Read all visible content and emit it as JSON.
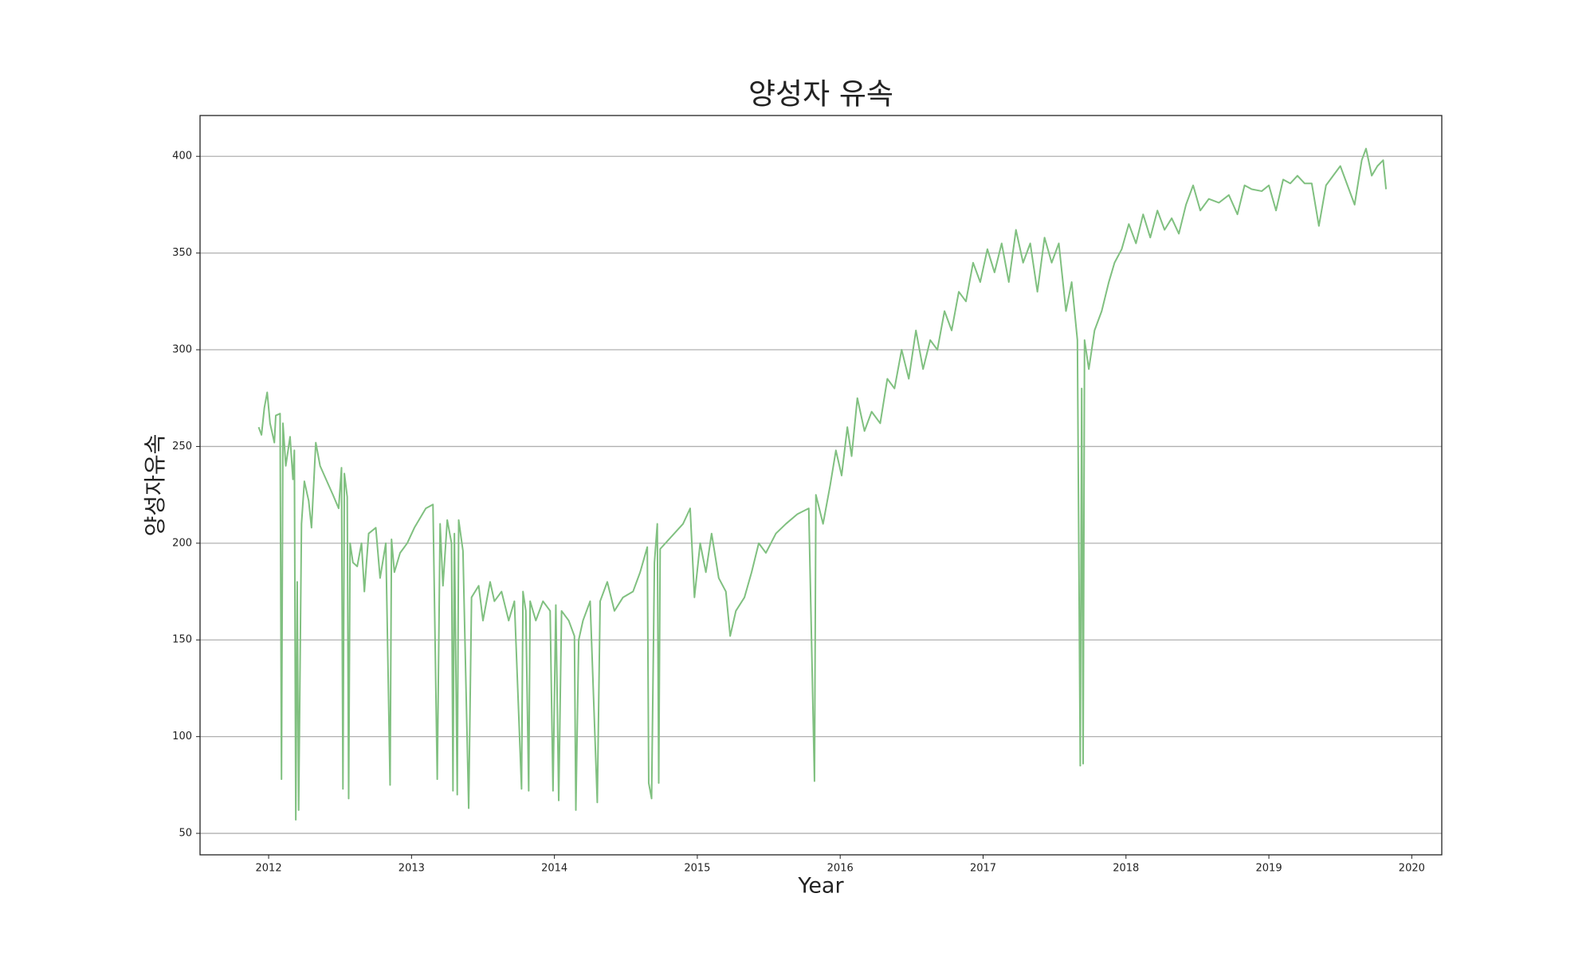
{
  "chart_data": {
    "type": "line",
    "title": "양성자 유속",
    "xlabel": "Year",
    "ylabel": "양성자유속",
    "x": [
      2011.93,
      2011.95,
      2011.97,
      2011.99,
      2012.01,
      2012.04,
      2012.05,
      2012.08,
      2012.09,
      2012.1,
      2012.12,
      2012.15,
      2012.17,
      2012.18,
      2012.19,
      2012.2,
      2012.21,
      2012.23,
      2012.25,
      2012.28,
      2012.3,
      2012.33,
      2012.36,
      2012.45,
      2012.49,
      2012.51,
      2012.52,
      2012.53,
      2012.55,
      2012.56,
      2012.57,
      2012.59,
      2012.62,
      2012.65,
      2012.67,
      2012.7,
      2012.75,
      2012.78,
      2012.82,
      2012.85,
      2012.86,
      2012.88,
      2012.92,
      2012.97,
      2013.02,
      2013.06,
      2013.1,
      2013.15,
      2013.18,
      2013.2,
      2013.22,
      2013.25,
      2013.28,
      2013.29,
      2013.3,
      2013.32,
      2013.33,
      2013.36,
      2013.4,
      2013.42,
      2013.47,
      2013.5,
      2013.55,
      2013.58,
      2013.63,
      2013.68,
      2013.72,
      2013.77,
      2013.78,
      2013.8,
      2013.82,
      2013.83,
      2013.87,
      2013.92,
      2013.97,
      2013.99,
      2014.01,
      2014.03,
      2014.05,
      2014.1,
      2014.14,
      2014.15,
      2014.17,
      2014.2,
      2014.25,
      2014.3,
      2014.32,
      2014.37,
      2014.42,
      2014.48,
      2014.55,
      2014.6,
      2014.65,
      2014.66,
      2014.68,
      2014.7,
      2014.72,
      2014.73,
      2014.74,
      2014.9,
      2014.95,
      2014.98,
      2015.02,
      2015.06,
      2015.1,
      2015.15,
      2015.2,
      2015.23,
      2015.27,
      2015.33,
      2015.38,
      2015.43,
      2015.48,
      2015.55,
      2015.62,
      2015.7,
      2015.78,
      2015.82,
      2015.83,
      2015.88,
      2015.93,
      2015.97,
      2016.01,
      2016.05,
      2016.08,
      2016.12,
      2016.17,
      2016.22,
      2016.28,
      2016.33,
      2016.38,
      2016.43,
      2016.48,
      2016.53,
      2016.58,
      2016.63,
      2016.68,
      2016.73,
      2016.78,
      2016.83,
      2016.88,
      2016.93,
      2016.98,
      2017.03,
      2017.08,
      2017.13,
      2017.18,
      2017.23,
      2017.28,
      2017.33,
      2017.38,
      2017.43,
      2017.48,
      2017.53,
      2017.58,
      2017.62,
      2017.66,
      2017.68,
      2017.69,
      2017.7,
      2017.71,
      2017.74,
      2017.78,
      2017.83,
      2017.88,
      2017.92,
      2017.97,
      2018.02,
      2018.07,
      2018.12,
      2018.17,
      2018.22,
      2018.27,
      2018.32,
      2018.37,
      2018.42,
      2018.47,
      2018.52,
      2018.58,
      2018.65,
      2018.72,
      2018.78,
      2018.83,
      2018.88,
      2018.95,
      2019.0,
      2019.05,
      2019.1,
      2019.15,
      2019.2,
      2019.25,
      2019.3,
      2019.35,
      2019.4,
      2019.45,
      2019.5,
      2019.55,
      2019.6,
      2019.65,
      2019.68,
      2019.72,
      2019.76,
      2019.8,
      2019.82
    ],
    "series": [
      {
        "name": "양성자유속",
        "color": "#80c080",
        "values": [
          260,
          256,
          270,
          278,
          262,
          252,
          266,
          267,
          78,
          262,
          240,
          255,
          233,
          248,
          57,
          180,
          62,
          210,
          232,
          222,
          208,
          252,
          240,
          225,
          218,
          239,
          73,
          236,
          224,
          68,
          200,
          190,
          188,
          200,
          175,
          205,
          208,
          182,
          200,
          75,
          202,
          185,
          195,
          200,
          208,
          213,
          218,
          220,
          78,
          210,
          178,
          212,
          200,
          72,
          205,
          70,
          212,
          196,
          63,
          172,
          178,
          160,
          180,
          170,
          175,
          160,
          170,
          73,
          175,
          165,
          72,
          170,
          160,
          170,
          165,
          72,
          168,
          67,
          165,
          160,
          152,
          62,
          150,
          160,
          170,
          66,
          170,
          180,
          165,
          172,
          175,
          185,
          198,
          76,
          68,
          190,
          210,
          76,
          197,
          210,
          218,
          172,
          200,
          185,
          205,
          182,
          175,
          152,
          165,
          172,
          185,
          200,
          195,
          205,
          210,
          215,
          218,
          77,
          225,
          210,
          230,
          248,
          235,
          260,
          245,
          275,
          258,
          268,
          262,
          285,
          280,
          300,
          285,
          310,
          290,
          305,
          300,
          320,
          310,
          330,
          325,
          345,
          335,
          352,
          340,
          355,
          335,
          362,
          345,
          355,
          330,
          358,
          345,
          355,
          320,
          335,
          305,
          85,
          280,
          86,
          305,
          290,
          310,
          320,
          335,
          345,
          352,
          365,
          355,
          370,
          358,
          372,
          362,
          368,
          360,
          375,
          385,
          372,
          378,
          376,
          380,
          370,
          385,
          383,
          382,
          385,
          372,
          388,
          386,
          390,
          386,
          386,
          364,
          385,
          390,
          395,
          385,
          375,
          398,
          404,
          390,
          395,
          398,
          383
        ]
      }
    ],
    "xlim": [
      2011.52,
      2020.21
    ],
    "ylim": [
      38.9,
      421.1
    ],
    "xticks": [
      2012,
      2013,
      2014,
      2015,
      2016,
      2017,
      2018,
      2019,
      2020
    ],
    "yticks": [
      50,
      100,
      150,
      200,
      250,
      300,
      350,
      400
    ],
    "grid": "y",
    "ytick_color": "#1a8c1a",
    "ylabel_color": "#1a8c1a"
  }
}
